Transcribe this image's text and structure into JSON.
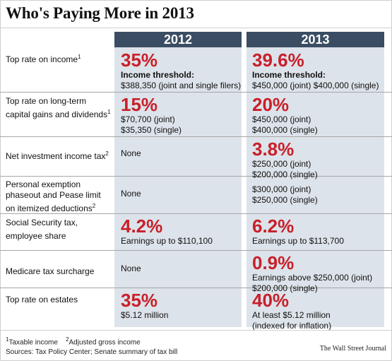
{
  "title": "Who's Paying More in 2013",
  "columns": {
    "y2012": "2012",
    "y2013": "2013"
  },
  "rows": [
    {
      "label": "Top rate on income",
      "label_note": "1",
      "v2012": {
        "big": "35%",
        "bold": "Income threshold:",
        "lines": [
          "$388,350 (joint and single filers)"
        ]
      },
      "v2013": {
        "big": "39.6%",
        "bold": "Income threshold:",
        "lines": [
          "$450,000 (joint) $400,000 (single)"
        ]
      }
    },
    {
      "label": "Top rate on long-term capital gains and dividends",
      "label_note": "1",
      "v2012": {
        "big": "15%",
        "lines": [
          "$70,700 (joint)",
          "$35,350 (single)"
        ]
      },
      "v2013": {
        "big": "20%",
        "lines": [
          "$450,000 (joint)",
          "$400,000 (single)"
        ]
      }
    },
    {
      "label": "Net investment income tax",
      "label_note": "2",
      "v2012": {
        "lines": [
          "None"
        ]
      },
      "v2013": {
        "big": "3.8%",
        "lines": [
          "$250,000 (joint)",
          "$200,000 (single)"
        ]
      }
    },
    {
      "label": "Personal exemption phaseout and Pease limit on itemized deductions",
      "label_note": "2",
      "v2012": {
        "lines": [
          "None"
        ]
      },
      "v2013": {
        "lines": [
          "$300,000 (joint)",
          "$250,000 (single)"
        ]
      }
    },
    {
      "label": "Social Security tax, employee share",
      "label_note": "",
      "v2012": {
        "big": "4.2%",
        "lines": [
          "Earnings up to $110,100"
        ]
      },
      "v2013": {
        "big": "6.2%",
        "lines": [
          "Earnings up to $113,700"
        ]
      }
    },
    {
      "label": "Medicare tax surcharge",
      "label_note": "",
      "v2012": {
        "lines": [
          "None"
        ]
      },
      "v2013": {
        "big": "0.9%",
        "lines": [
          "Earnings above $250,000 (joint)",
          "$200,000 (single)"
        ]
      }
    },
    {
      "label": "Top rate on estates",
      "label_note": "",
      "v2012": {
        "big": "35%",
        "lines": [
          "$5.12 million"
        ]
      },
      "v2013": {
        "big": "40%",
        "lines": [
          "At least $5.12 million",
          "(indexed for inflation)"
        ]
      }
    }
  ],
  "footnotes": {
    "n1_mark": "1",
    "n1": "Taxable income",
    "n2_mark": "2",
    "n2": "Adjusted gross income",
    "sources": "Sources: Tax Policy Center; Senate summary of tax bill"
  },
  "credit": "The Wall Street Journal",
  "colors": {
    "accent_red": "#c8202a",
    "header_navy": "#3a4d63",
    "column_fill": "#dde3ea"
  }
}
